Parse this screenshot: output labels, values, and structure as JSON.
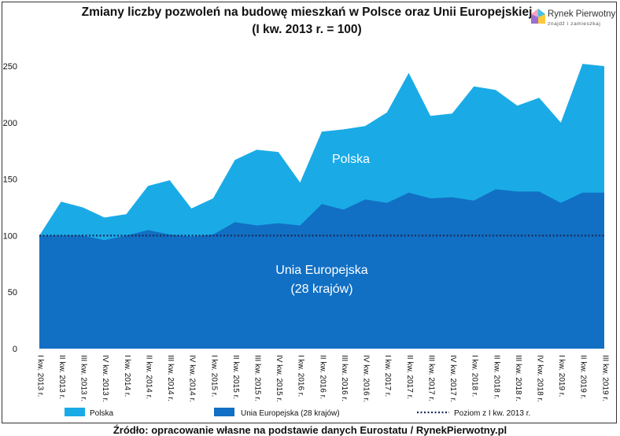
{
  "title": "Zmiany liczby pozwoleń na budowę mieszkań w Polsce oraz Unii Europejskiej",
  "subtitle": "(I kw. 2013 r. = 100)",
  "logo": {
    "name": "Rynek Pierwotny",
    "tagline": "znajdź i zamieszkaj"
  },
  "source": "Źródło: opracowanie własne na podstawie danych Eurostatu / RynekPierwotny.pl",
  "colors": {
    "polska": "#1aabe7",
    "ue": "#1170c4",
    "reference": "#1a2a5a"
  },
  "chart_data": {
    "type": "area",
    "title": "Zmiany liczby pozwoleń na budowę mieszkań w Polsce oraz Unii Europejskiej",
    "subtitle": "(I kw. 2013 r. = 100)",
    "ylim": [
      0,
      250
    ],
    "yticks": [
      0,
      50,
      100,
      150,
      200,
      250
    ],
    "grid": false,
    "legend_position": "bottom",
    "categories": [
      "I kw. 2013 r.",
      "II kw. 2013 r.",
      "III kw. 2013 r.",
      "IV kw. 2013 r.",
      "I kw. 2014 r.",
      "II kw. 2014 r.",
      "III kw. 2014 r.",
      "IV kw. 2014 r.",
      "I kw. 2015 r.",
      "II kw. 2015 r.",
      "III kw. 2015 r.",
      "IV kw. 2015 r.",
      "I kw. 2016 r.",
      "II kw. 2016 r.",
      "III kw. 2016 r.",
      "IV kw. 2016 r.",
      "I kw. 2017 r.",
      "II kw. 2017 r.",
      "III kw. 2017 r.",
      "IV kw. 2017 r.",
      "I kw. 2018 r.",
      "II kw. 2018 r.",
      "III kw. 2018 r.",
      "IV kw. 2018 r.",
      "I kw. 2019 r.",
      "II kw. 2019 r.",
      "III kw. 2019 r."
    ],
    "series": [
      {
        "name": "Polska",
        "values": [
          100,
          130,
          125,
          116,
          119,
          144,
          149,
          124,
          133,
          167,
          176,
          174,
          147,
          192,
          194,
          197,
          209,
          244,
          206,
          208,
          232,
          229,
          215,
          222,
          200,
          252,
          250
        ]
      },
      {
        "name": "Unia Europejska (28 krajów)",
        "values": [
          100,
          100,
          100,
          96,
          100,
          105,
          101,
          99,
          101,
          112,
          109,
          111,
          109,
          128,
          123,
          132,
          129,
          138,
          133,
          134,
          131,
          141,
          139,
          139,
          129,
          138,
          138
        ]
      },
      {
        "name": "Poziom z I kw. 2013 r.",
        "values": [
          100,
          100,
          100,
          100,
          100,
          100,
          100,
          100,
          100,
          100,
          100,
          100,
          100,
          100,
          100,
          100,
          100,
          100,
          100,
          100,
          100,
          100,
          100,
          100,
          100,
          100,
          100
        ]
      }
    ],
    "annotations": [
      {
        "text": "Polska"
      },
      {
        "text": "Unia Europejska"
      },
      {
        "text": "(28 krajów)"
      }
    ]
  }
}
